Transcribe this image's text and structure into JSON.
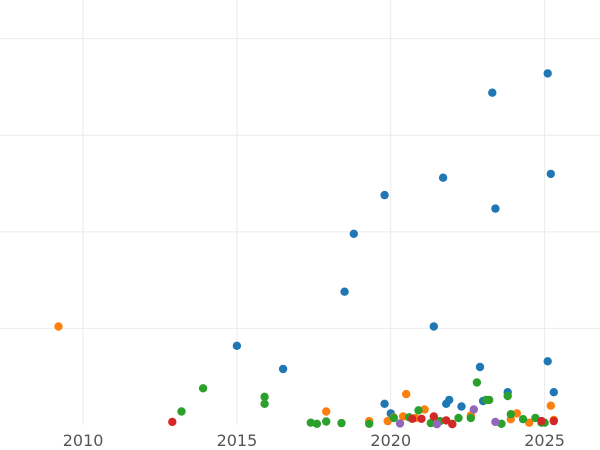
{
  "chart_data": {
    "type": "scatter",
    "title": "",
    "xlabel": "",
    "ylabel": "",
    "xlim": [
      2007.3,
      2026.8
    ],
    "ylim": [
      0,
      110
    ],
    "x_ticks": [
      2010,
      2015,
      2020,
      2025
    ],
    "x_tick_labels": [
      "2010",
      "2015",
      "2020",
      "2025"
    ],
    "y_gridlines": [
      25,
      50,
      75,
      100
    ],
    "y_tick_labels_visible": false,
    "grid": true,
    "legend": "none",
    "series": [
      {
        "color": "#1f77b4",
        "points": [
          [
            2015.0,
            20.5
          ],
          [
            2016.5,
            14.5
          ],
          [
            2018.5,
            34.5
          ],
          [
            2018.8,
            49.5
          ],
          [
            2019.8,
            59.5
          ],
          [
            2019.8,
            5.5
          ],
          [
            2020.0,
            3.0
          ],
          [
            2021.4,
            25.5
          ],
          [
            2021.7,
            64.0
          ],
          [
            2021.8,
            5.5
          ],
          [
            2021.9,
            6.5
          ],
          [
            2022.3,
            4.8
          ],
          [
            2022.9,
            15.0
          ],
          [
            2023.0,
            6.2
          ],
          [
            2023.3,
            86.0
          ],
          [
            2023.4,
            56.0
          ],
          [
            2023.8,
            8.5
          ],
          [
            2025.1,
            91.0
          ],
          [
            2025.1,
            16.5
          ],
          [
            2025.2,
            65.0
          ],
          [
            2025.3,
            8.5
          ]
        ]
      },
      {
        "color": "#ff7f0e",
        "points": [
          [
            2009.2,
            25.5
          ],
          [
            2017.9,
            3.5
          ],
          [
            2019.3,
            1.0
          ],
          [
            2019.9,
            1.0
          ],
          [
            2020.1,
            2.0
          ],
          [
            2020.4,
            2.2
          ],
          [
            2020.5,
            8.0
          ],
          [
            2020.8,
            1.8
          ],
          [
            2021.1,
            4.0
          ],
          [
            2022.6,
            2.5
          ],
          [
            2023.9,
            1.5
          ],
          [
            2024.1,
            3.0
          ],
          [
            2024.5,
            0.6
          ],
          [
            2025.2,
            5.0
          ],
          [
            2025.3,
            1.3
          ]
        ]
      },
      {
        "color": "#2ca02c",
        "points": [
          [
            2013.2,
            3.5
          ],
          [
            2013.9,
            9.5
          ],
          [
            2015.9,
            5.5
          ],
          [
            2015.9,
            7.3
          ],
          [
            2017.4,
            0.6
          ],
          [
            2017.6,
            0.3
          ],
          [
            2017.9,
            0.9
          ],
          [
            2018.4,
            0.5
          ],
          [
            2019.3,
            0.3
          ],
          [
            2020.1,
            1.8
          ],
          [
            2020.6,
            2.0
          ],
          [
            2020.9,
            3.8
          ],
          [
            2021.3,
            0.5
          ],
          [
            2021.6,
            1.0
          ],
          [
            2022.0,
            0.3
          ],
          [
            2022.2,
            1.8
          ],
          [
            2022.6,
            1.8
          ],
          [
            2022.8,
            11.0
          ],
          [
            2023.1,
            6.5
          ],
          [
            2023.2,
            6.5
          ],
          [
            2023.6,
            0.3
          ],
          [
            2023.8,
            7.5
          ],
          [
            2023.9,
            2.8
          ],
          [
            2024.3,
            1.5
          ],
          [
            2024.7,
            1.8
          ],
          [
            2024.9,
            0.6
          ],
          [
            2025.0,
            0.6
          ]
        ]
      },
      {
        "color": "#d62728",
        "points": [
          [
            2012.9,
            0.8
          ],
          [
            2020.7,
            1.6
          ],
          [
            2021.0,
            1.6
          ],
          [
            2021.4,
            2.2
          ],
          [
            2021.8,
            1.2
          ],
          [
            2022.0,
            0.2
          ],
          [
            2024.9,
            1.0
          ],
          [
            2025.3,
            1.0
          ]
        ]
      },
      {
        "color": "#9467bd",
        "points": [
          [
            2020.3,
            0.4
          ],
          [
            2021.5,
            0.2
          ],
          [
            2022.7,
            4.0
          ],
          [
            2023.4,
            0.8
          ]
        ]
      }
    ]
  }
}
